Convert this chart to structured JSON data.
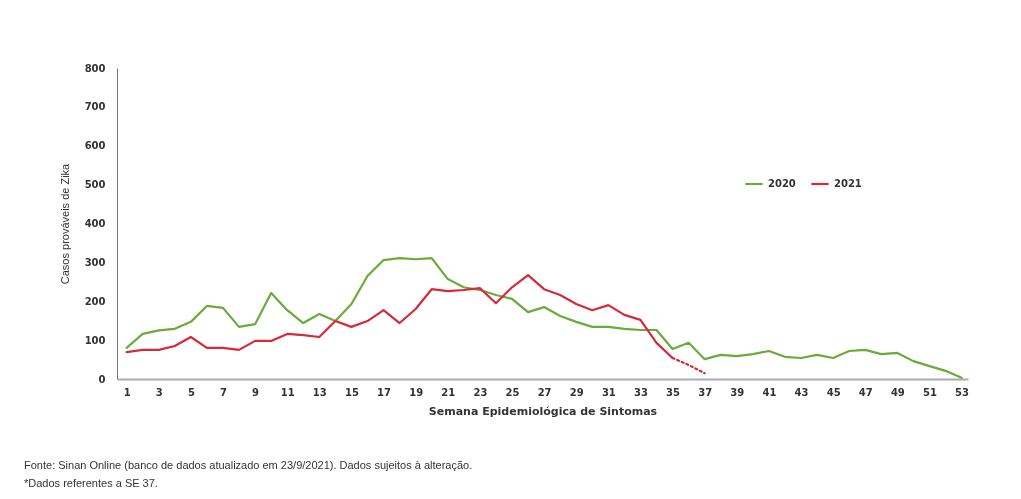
{
  "chart_data": {
    "type": "line",
    "xlabel": "Semana Epidemiológica de Sintomas",
    "ylabel": "Casos prováveis de Zika",
    "x": [
      1,
      2,
      3,
      4,
      5,
      6,
      7,
      8,
      9,
      10,
      11,
      12,
      13,
      14,
      15,
      16,
      17,
      18,
      19,
      20,
      21,
      22,
      23,
      24,
      25,
      26,
      27,
      28,
      29,
      30,
      31,
      32,
      33,
      34,
      35,
      36,
      37,
      38,
      39,
      40,
      41,
      42,
      43,
      44,
      45,
      46,
      47,
      48,
      49,
      50,
      51,
      52,
      53
    ],
    "xlim": [
      0.4,
      53.4
    ],
    "xticks": [
      1,
      3,
      5,
      7,
      9,
      11,
      13,
      15,
      17,
      19,
      21,
      23,
      25,
      27,
      29,
      31,
      33,
      35,
      37,
      39,
      41,
      43,
      45,
      47,
      49,
      51,
      53
    ],
    "ylim": [
      0,
      800
    ],
    "yticks": [
      0,
      100,
      200,
      300,
      400,
      500,
      600,
      700,
      800
    ],
    "series": [
      {
        "name": "2020",
        "color": "#6aab3a",
        "values": [
          80,
          116,
          125,
          129,
          147,
          188,
          183,
          134,
          141,
          221,
          177,
          144,
          167,
          149,
          193,
          265,
          306,
          311,
          308,
          311,
          257,
          236,
          229,
          216,
          206,
          172,
          185,
          162,
          147,
          134,
          134,
          129,
          126,
          126,
          77,
          93,
          51,
          62,
          59,
          64,
          72,
          57,
          54,
          62,
          54,
          72,
          75,
          64,
          67,
          46,
          33,
          21,
          3
        ]
      },
      {
        "name": "2021",
        "color": "#d42b3a",
        "values": [
          69,
          75,
          75,
          85,
          108,
          80,
          80,
          75,
          98,
          98,
          116,
          113,
          108,
          149,
          134,
          149,
          177,
          144,
          180,
          231,
          226,
          229,
          234,
          195,
          236,
          267,
          231,
          216,
          193,
          177,
          190,
          165,
          152,
          93,
          54,
          null,
          null,
          null,
          null,
          null,
          null,
          null,
          null,
          null,
          null,
          null,
          null,
          null,
          null,
          null,
          null,
          null,
          null
        ]
      },
      {
        "color": "#d42b3a",
        "line_style": "dotted",
        "values": [
          null,
          null,
          null,
          null,
          null,
          null,
          null,
          null,
          null,
          null,
          null,
          null,
          null,
          null,
          null,
          null,
          null,
          null,
          null,
          null,
          null,
          null,
          null,
          null,
          null,
          null,
          null,
          null,
          null,
          null,
          null,
          null,
          null,
          null,
          54,
          36,
          15,
          null,
          null,
          null,
          null,
          null,
          null,
          null,
          null,
          null,
          null,
          null,
          null,
          null,
          null,
          null,
          null
        ]
      }
    ],
    "legend": "top right",
    "line_style": "solid",
    "annotations": [
      "Fonte: Sinan Online (banco de dados atualizado em 23/9/2021). Dados sujeitos à alteração.",
      "*Dados referentes a SE 37."
    ]
  }
}
